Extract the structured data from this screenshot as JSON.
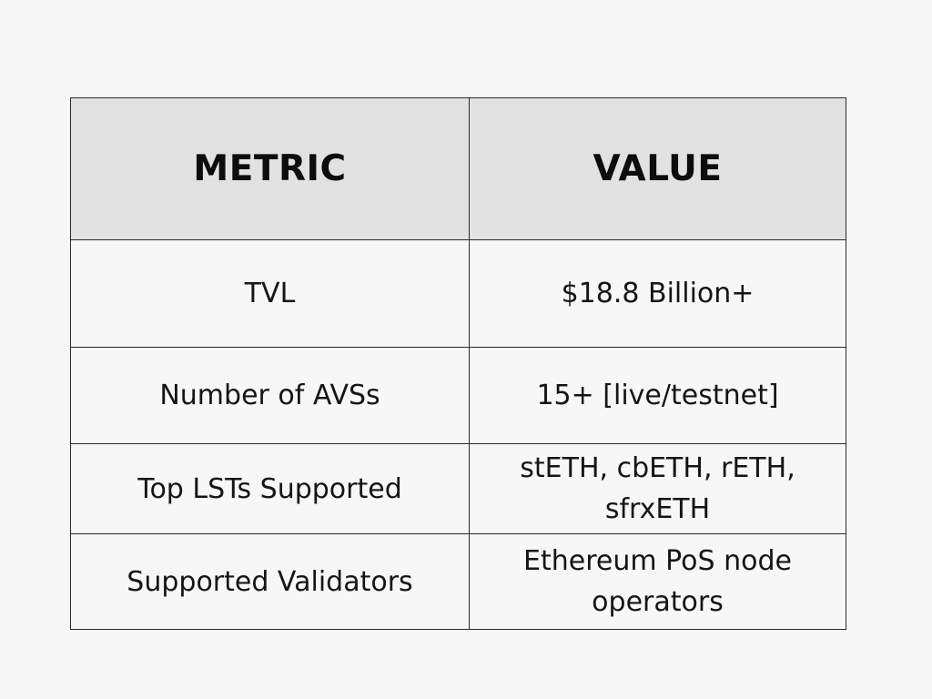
{
  "table": {
    "headers": {
      "metric": "METRIC",
      "value": "VALUE"
    },
    "rows": [
      {
        "metric": "TVL",
        "value": "$18.8 Billion+"
      },
      {
        "metric": "Number of AVSs",
        "value": "15+ [live/testnet]"
      },
      {
        "metric": "Top LSTs Supported",
        "value": "stETH, cbETH, rETH, sfrxETH"
      },
      {
        "metric": "Supported Validators",
        "value": "Ethereum PoS node operators"
      }
    ]
  }
}
